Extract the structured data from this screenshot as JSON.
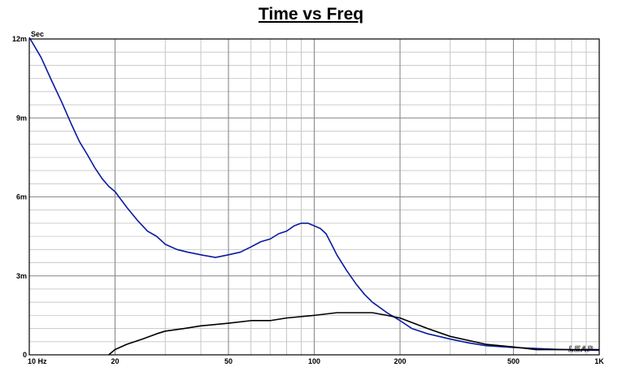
{
  "chart_data": {
    "type": "line",
    "title": "Time vs Freq",
    "ylabel": "Sec",
    "xlabel": "",
    "xscale": "log",
    "xlim": [
      10,
      1000
    ],
    "ylim": [
      0,
      0.012
    ],
    "grid": true,
    "x_ticks": [
      {
        "value": 10,
        "label": "10 Hz"
      },
      {
        "value": 20,
        "label": "20"
      },
      {
        "value": 50,
        "label": "50"
      },
      {
        "value": 100,
        "label": "100"
      },
      {
        "value": 200,
        "label": "200"
      },
      {
        "value": 500,
        "label": "500"
      },
      {
        "value": 1000,
        "label": "1K"
      }
    ],
    "y_ticks": [
      {
        "value": 0,
        "label": "0"
      },
      {
        "value": 0.003,
        "label": "3m"
      },
      {
        "value": 0.006,
        "label": "6m"
      },
      {
        "value": 0.009,
        "label": "9m"
      },
      {
        "value": 0.012,
        "label": "12m"
      }
    ],
    "watermark": "LEAP",
    "series": [
      {
        "color": "#0a1aa0",
        "x": [
          10,
          11,
          12,
          13,
          14,
          15,
          16,
          17,
          18,
          19,
          20,
          22,
          24,
          26,
          28,
          30,
          33,
          36,
          40,
          45,
          50,
          55,
          60,
          65,
          70,
          75,
          80,
          85,
          90,
          95,
          100,
          105,
          110,
          115,
          120,
          130,
          140,
          150,
          160,
          180,
          200,
          220,
          250,
          300,
          350,
          400,
          500,
          600,
          700,
          800,
          1000
        ],
        "y": [
          0.0122,
          0.0113,
          0.0104,
          0.0096,
          0.0088,
          0.0081,
          0.0076,
          0.0071,
          0.0067,
          0.0064,
          0.0062,
          0.0056,
          0.0051,
          0.0047,
          0.0045,
          0.0042,
          0.004,
          0.0039,
          0.0038,
          0.0037,
          0.0038,
          0.0039,
          0.0041,
          0.0043,
          0.0044,
          0.0046,
          0.0047,
          0.0049,
          0.005,
          0.005,
          0.0049,
          0.0048,
          0.0046,
          0.0042,
          0.0038,
          0.0032,
          0.0027,
          0.0023,
          0.002,
          0.0016,
          0.0013,
          0.001,
          0.0008,
          0.0006,
          0.00045,
          0.00035,
          0.00028,
          0.00024,
          0.00021,
          0.00019,
          0.00017
        ]
      },
      {
        "color": "#000000",
        "x": [
          19,
          20,
          22,
          25,
          28,
          30,
          35,
          40,
          50,
          60,
          70,
          80,
          100,
          120,
          140,
          150,
          160,
          180,
          200,
          250,
          300,
          400,
          500,
          600,
          700,
          800,
          1000
        ],
        "y": [
          0,
          0.0002,
          0.0004,
          0.0006,
          0.0008,
          0.0009,
          0.001,
          0.0011,
          0.0012,
          0.0013,
          0.0013,
          0.0014,
          0.0015,
          0.0016,
          0.0016,
          0.0016,
          0.0016,
          0.0015,
          0.0014,
          0.001,
          0.0007,
          0.0004,
          0.0003,
          0.0002,
          0.0002,
          0.0002,
          0.0002
        ]
      }
    ]
  }
}
